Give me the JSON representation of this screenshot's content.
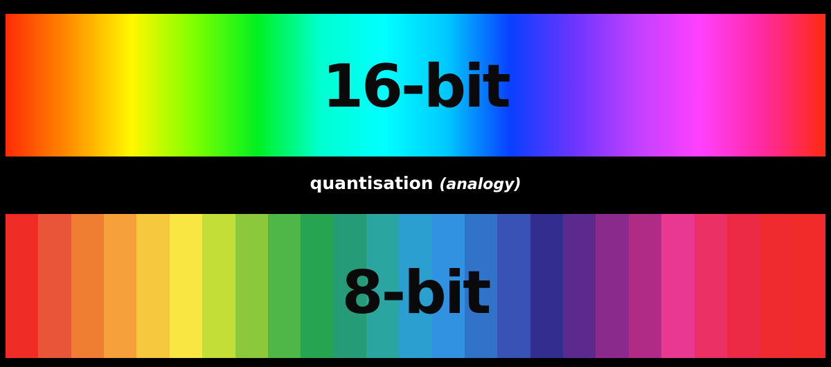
{
  "top": {
    "label": "16-bit",
    "gradient_stops": [
      "#ff2a08",
      "#ff8d00",
      "#fff700",
      "#7cff00",
      "#00f020",
      "#00ffd0",
      "#00ffff",
      "#00c8ff",
      "#0a40ff",
      "#6a35ff",
      "#c040ff",
      "#ff40ff",
      "#ff2aa0",
      "#ff2a10"
    ]
  },
  "caption": {
    "main": "quantisation",
    "note": "(analogy)"
  },
  "bottom": {
    "label": "8-bit",
    "bands": [
      "#f02c26",
      "#e85538",
      "#ef7d32",
      "#f6a03c",
      "#f6c83d",
      "#fae642",
      "#c4de38",
      "#8bc83c",
      "#4eb748",
      "#27a450",
      "#259b78",
      "#2ba5a0",
      "#2a9fd0",
      "#3092e0",
      "#3073c8",
      "#3852b5",
      "#322d8f",
      "#5c2a8e",
      "#8a2a8c",
      "#b02b86",
      "#e83892",
      "#eb3065",
      "#ec2a45",
      "#ef2b30",
      "#f12a2a"
    ]
  }
}
